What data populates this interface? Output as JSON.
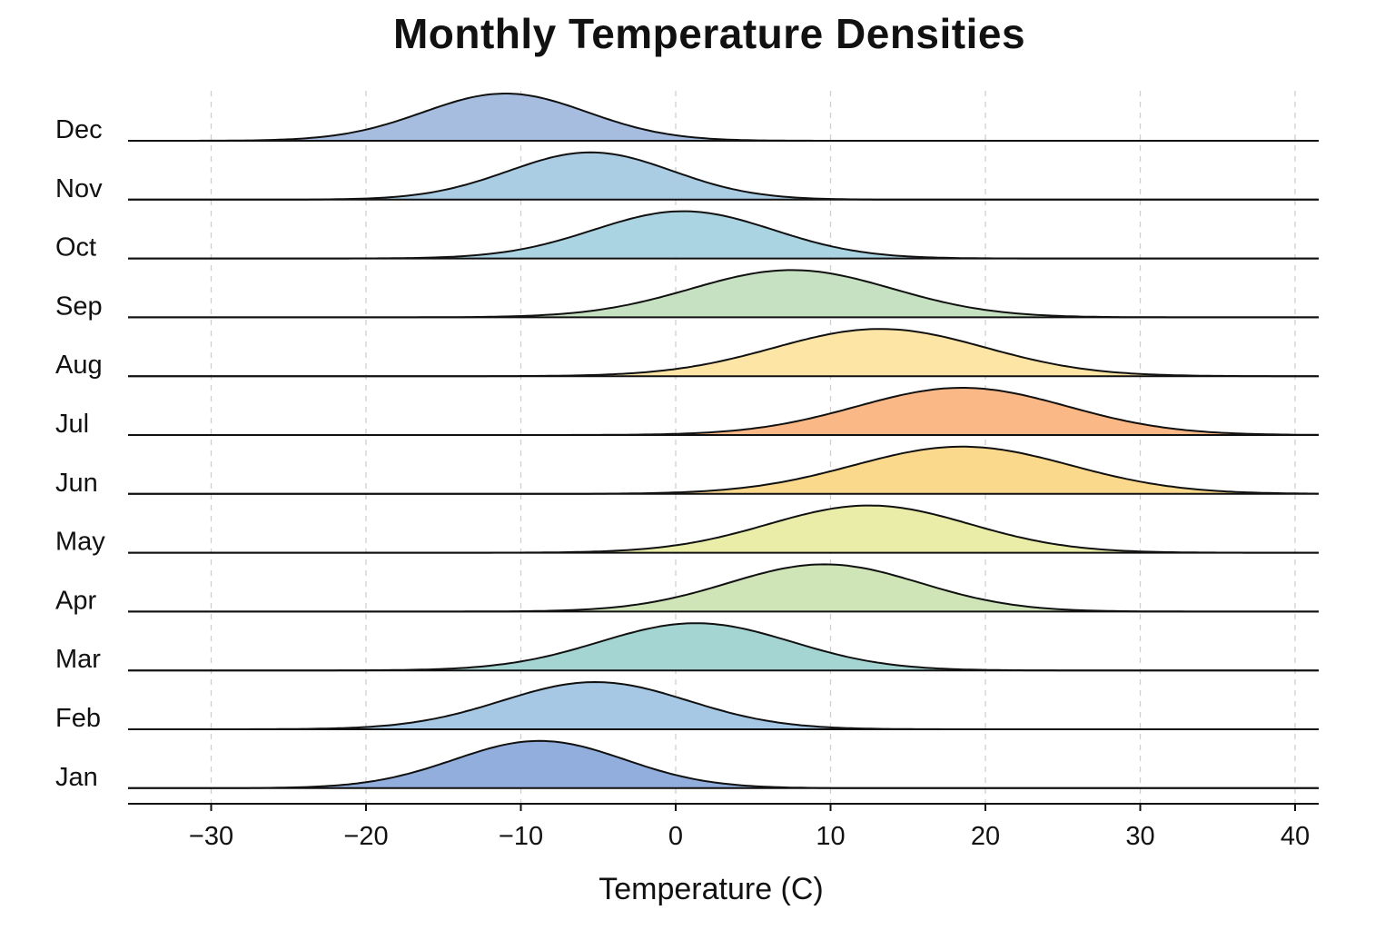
{
  "chart_data": {
    "type": "ridgeline",
    "title": "Monthly Temperature Densities",
    "xlabel": "Temperature (C)",
    "ylabel": "",
    "xlim": [
      -35.5,
      41.5
    ],
    "x_ticks": [
      -30,
      -20,
      -10,
      0,
      10,
      20,
      30,
      40
    ],
    "x_tick_labels": [
      "−30",
      "−20",
      "−10",
      "0",
      "10",
      "20",
      "30",
      "40"
    ],
    "grid": "vertical dashed at ticks",
    "legend": "none",
    "series": [
      {
        "name": "Jan",
        "peak_temperature": -8.8,
        "spread_sd": 5.5,
        "color": "#92aedc"
      },
      {
        "name": "Feb",
        "peak_temperature": -5.2,
        "spread_sd": 6.0,
        "color": "#a6c8e4"
      },
      {
        "name": "Mar",
        "peak_temperature": 1.3,
        "spread_sd": 6.2,
        "color": "#a4d5d2"
      },
      {
        "name": "Apr",
        "peak_temperature": 9.6,
        "spread_sd": 6.2,
        "color": "#cfe5b8"
      },
      {
        "name": "May",
        "peak_temperature": 12.5,
        "spread_sd": 6.5,
        "color": "#e9eda8"
      },
      {
        "name": "Jun",
        "peak_temperature": 18.5,
        "spread_sd": 7.0,
        "color": "#fbd98c"
      },
      {
        "name": "Jul",
        "peak_temperature": 18.5,
        "spread_sd": 6.8,
        "color": "#fbb887"
      },
      {
        "name": "Aug",
        "peak_temperature": 13.2,
        "spread_sd": 6.8,
        "color": "#fde5a6"
      },
      {
        "name": "Sep",
        "peak_temperature": 7.5,
        "spread_sd": 6.5,
        "color": "#c6e1c1"
      },
      {
        "name": "Oct",
        "peak_temperature": 0.5,
        "spread_sd": 5.8,
        "color": "#abd4e2"
      },
      {
        "name": "Nov",
        "peak_temperature": -5.5,
        "spread_sd": 5.3,
        "color": "#aacde4"
      },
      {
        "name": "Dec",
        "peak_temperature": -11.0,
        "spread_sd": 5.3,
        "color": "#a6bde0"
      }
    ],
    "row_order_top_to_bottom": [
      "Dec",
      "Nov",
      "Oct",
      "Sep",
      "Aug",
      "Jul",
      "Jun",
      "May",
      "Apr",
      "Mar",
      "Feb",
      "Jan"
    ]
  }
}
